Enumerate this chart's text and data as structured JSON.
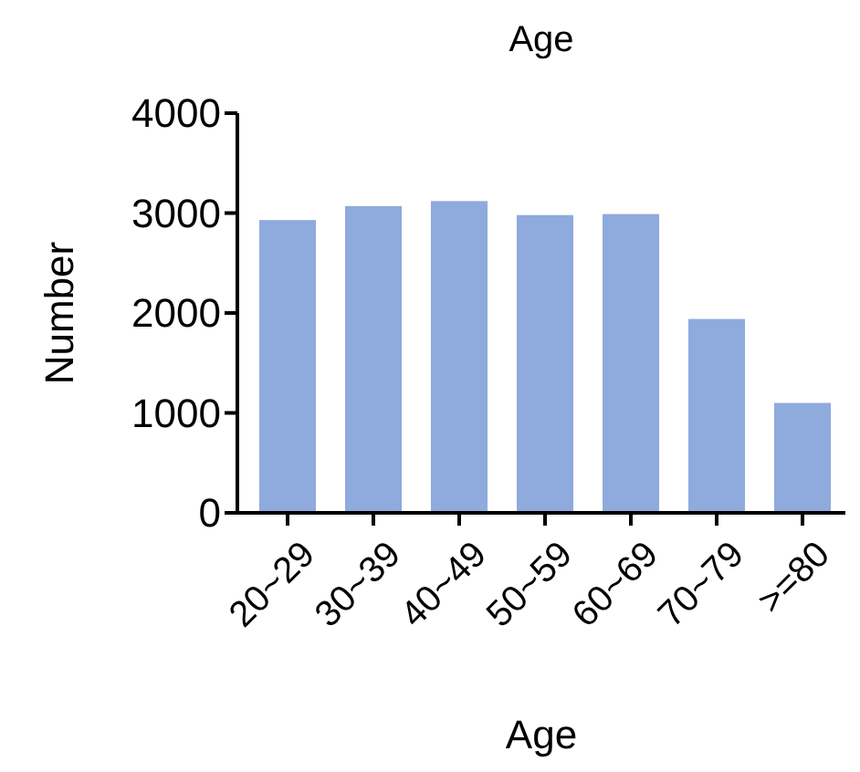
{
  "chart_data": {
    "type": "bar",
    "title": "Age",
    "xlabel": "Age",
    "ylabel": "Number",
    "categories": [
      "20~29",
      "30~39",
      "40~49",
      "50~59",
      "60~69",
      "70~79",
      ">=80"
    ],
    "values": [
      2930,
      3070,
      3120,
      2980,
      2990,
      1940,
      1100
    ],
    "color": "#8faadc",
    "ylim": [
      0,
      4000
    ],
    "yticks": [
      0,
      1000,
      2000,
      3000,
      4000
    ],
    "grid": false
  }
}
